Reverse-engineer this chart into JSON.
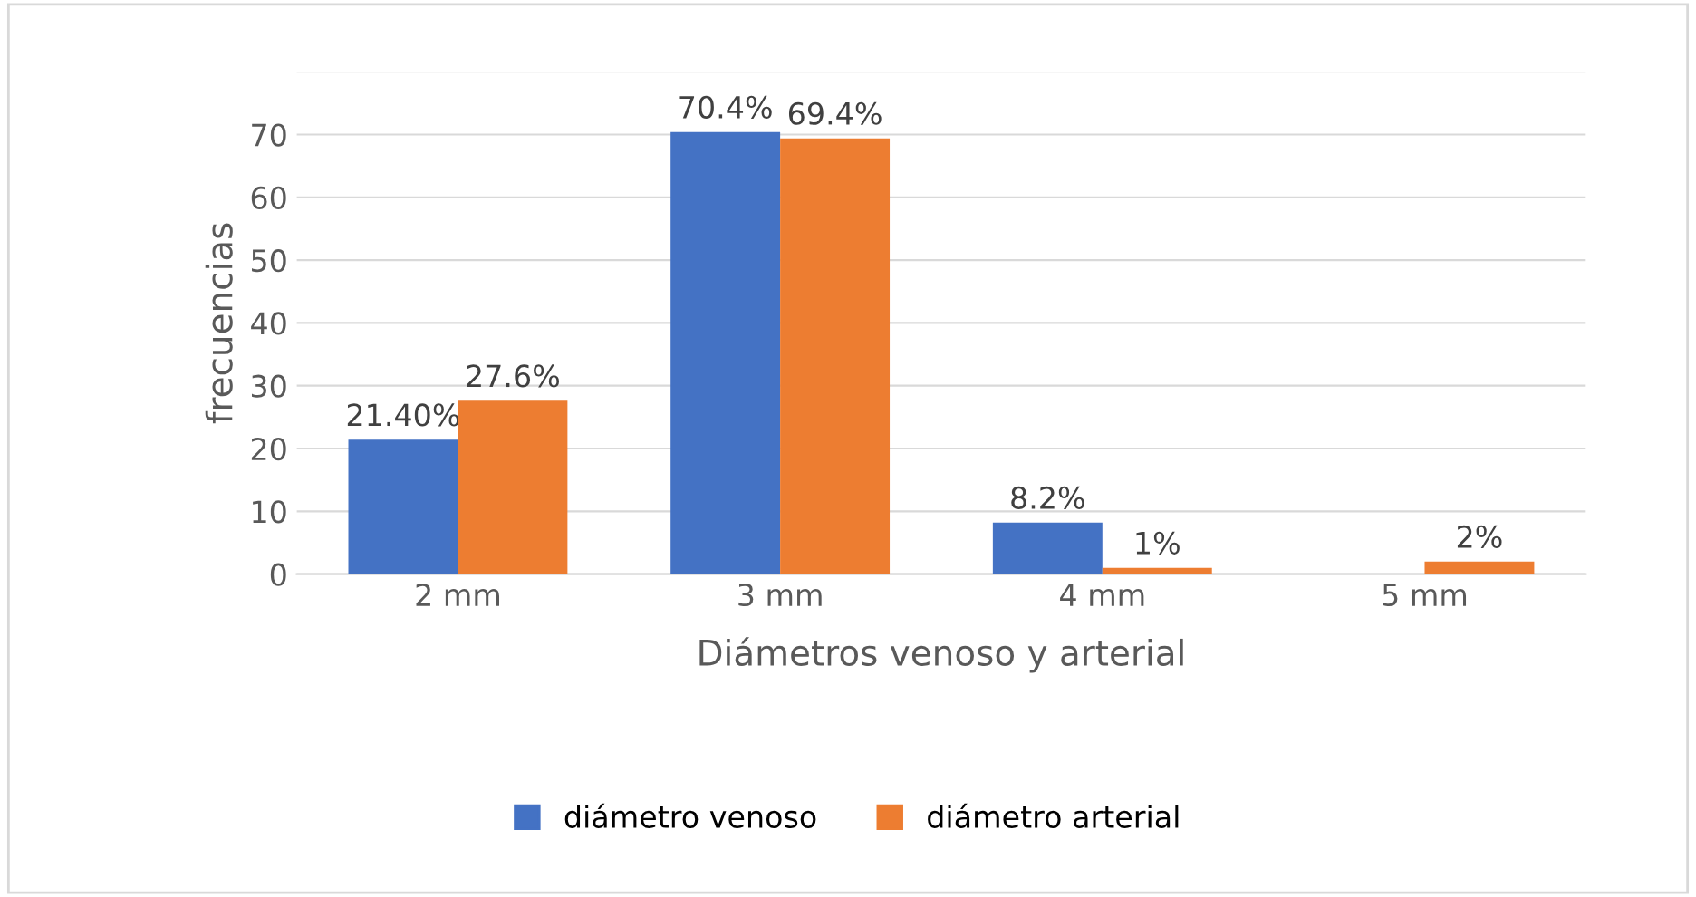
{
  "chart_data": {
    "type": "bar",
    "xlabel": "Diámetros venoso y arterial",
    "ylabel": "frecuencias",
    "categories": [
      "2 mm",
      "3 mm",
      "4 mm",
      "5 mm"
    ],
    "series": [
      {
        "name": "diámetro venoso",
        "color": "#4472c4",
        "values": [
          21.4,
          70.4,
          8.2,
          null
        ],
        "value_labels": [
          "21.40%",
          "70.4%",
          "8.2%",
          null
        ]
      },
      {
        "name": "diámetro arterial",
        "color": "#ed7d31",
        "values": [
          27.6,
          69.4,
          1,
          2
        ],
        "value_labels": [
          "27.6%",
          "69.4%",
          "1%",
          "2%"
        ]
      }
    ],
    "ylim": [
      0,
      80
    ],
    "yticks": [
      0,
      10,
      20,
      30,
      40,
      50,
      60,
      70,
      {
        "value": 80,
        "label": null
      }
    ],
    "grid": "y",
    "legend": "bottom"
  }
}
